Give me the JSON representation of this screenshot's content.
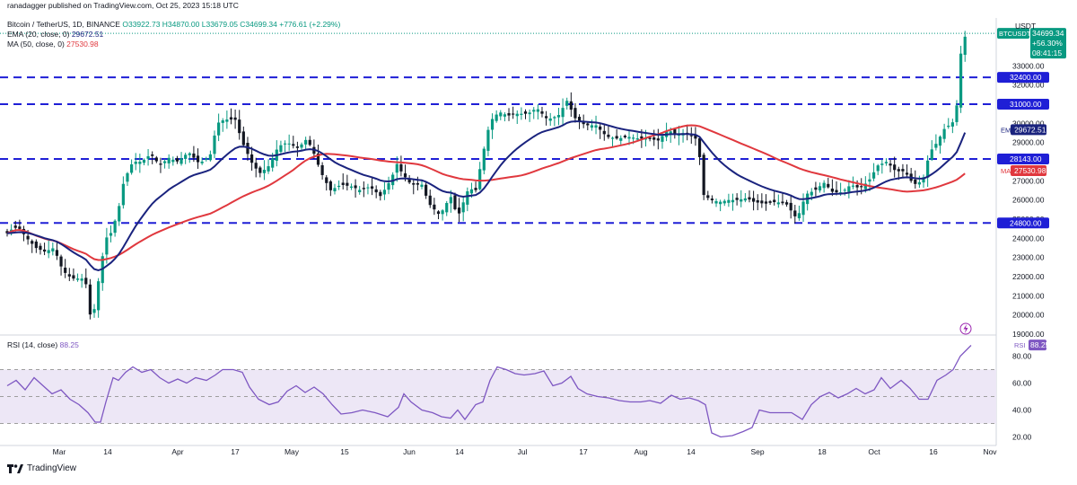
{
  "publisher": "ranadagger published on TradingView.com, Oct 25, 2023 15:18 UTC",
  "legend": {
    "symbol_line": "Bitcoin / TetherUS, 1D, BINANCE",
    "ohlc": "O33922.73 H34870.00 L33679.05 C34699.34 +776.61 (+2.29%)",
    "ema_label": "EMA (20, close, 0)",
    "ema_value": "29672.51",
    "ma_label": "MA (50, close, 0)",
    "ma_value": "27530.98"
  },
  "rsi_legend": {
    "label": "RSI (14, close)",
    "value": "88.25"
  },
  "logo_text": "TradingView",
  "price_axis_currency": "USDT",
  "price_tag": {
    "symbol": "BTCUSDT",
    "price": "34699.34",
    "change": "+56.30%",
    "countdown": "08:41:15"
  },
  "colors": {
    "up": "#089981",
    "down": "#131722",
    "ema": "#1a237e",
    "ma": "#e0383e",
    "rsi": "#7e57c2",
    "rsi_band": "#ede7f6",
    "level": "#1f1fd6",
    "text": "#131722"
  },
  "icons": {
    "alert": "lightning-icon",
    "logo": "tradingview-logo-icon"
  },
  "chart_data": [
    {
      "type": "candlestick",
      "title": "Bitcoin / TetherUS, 1D, BINANCE",
      "ylim": [
        19000,
        35500
      ],
      "y_ticks": [
        19000,
        20000,
        21000,
        22000,
        23000,
        24000,
        25000,
        26000,
        27000,
        28000,
        29000,
        30000,
        31000,
        32000,
        33000
      ],
      "x_ticks": [
        "Mar",
        "14",
        "Apr",
        "17",
        "May",
        "15",
        "Jun",
        "14",
        "Jul",
        "17",
        "Aug",
        "14",
        "Sep",
        "18",
        "Oct",
        "16",
        "Nov"
      ],
      "horizontal_levels": [
        {
          "value": 32400,
          "label": "32400.00"
        },
        {
          "value": 31000,
          "label": "31000.00"
        },
        {
          "value": 28143,
          "label": "28143.00"
        },
        {
          "value": 24800,
          "label": "24800.00"
        }
      ],
      "ema_tag": "29672.51",
      "ma_tag": "27530.98",
      "series": [
        {
          "name": "EMA",
          "legend": "EMA (20, close, 0)",
          "last": 29672.51
        },
        {
          "name": "MA",
          "legend": "MA (50, close, 0)",
          "last": 27530.98
        }
      ],
      "close_path": [
        [
          0,
          23700
        ],
        [
          10,
          24400
        ],
        [
          20,
          24600
        ],
        [
          30,
          24000
        ],
        [
          40,
          23500
        ],
        [
          50,
          23300
        ],
        [
          60,
          23500
        ],
        [
          70,
          22300
        ],
        [
          80,
          21900
        ],
        [
          95,
          21900
        ],
        [
          100,
          20000
        ],
        [
          105,
          20300
        ],
        [
          112,
          22500
        ],
        [
          118,
          24000
        ],
        [
          124,
          24300
        ],
        [
          132,
          25500
        ],
        [
          138,
          27000
        ],
        [
          148,
          28000
        ],
        [
          158,
          28000
        ],
        [
          168,
          28400
        ],
        [
          178,
          27800
        ],
        [
          188,
          28200
        ],
        [
          198,
          28000
        ],
        [
          210,
          28500
        ],
        [
          222,
          27900
        ],
        [
          234,
          28300
        ],
        [
          242,
          30000
        ],
        [
          250,
          30200
        ],
        [
          262,
          30200
        ],
        [
          270,
          29000
        ],
        [
          282,
          27800
        ],
        [
          290,
          27400
        ],
        [
          300,
          27800
        ],
        [
          310,
          28800
        ],
        [
          320,
          29000
        ],
        [
          332,
          28700
        ],
        [
          342,
          29200
        ],
        [
          350,
          28400
        ],
        [
          358,
          27400
        ],
        [
          368,
          26500
        ],
        [
          380,
          26800
        ],
        [
          392,
          26700
        ],
        [
          402,
          26500
        ],
        [
          412,
          26700
        ],
        [
          424,
          26200
        ],
        [
          436,
          27100
        ],
        [
          442,
          27900
        ],
        [
          448,
          27400
        ],
        [
          458,
          26800
        ],
        [
          470,
          26800
        ],
        [
          478,
          25800
        ],
        [
          490,
          25200
        ],
        [
          502,
          26200
        ],
        [
          510,
          25100
        ],
        [
          522,
          26600
        ],
        [
          530,
          26500
        ],
        [
          538,
          28400
        ],
        [
          546,
          30100
        ],
        [
          556,
          30600
        ],
        [
          566,
          30400
        ],
        [
          576,
          30500
        ],
        [
          588,
          30500
        ],
        [
          598,
          30800
        ],
        [
          610,
          30200
        ],
        [
          622,
          30400
        ],
        [
          632,
          31200
        ],
        [
          640,
          30300
        ],
        [
          652,
          29900
        ],
        [
          664,
          29900
        ],
        [
          676,
          29300
        ],
        [
          688,
          29200
        ],
        [
          700,
          29300
        ],
        [
          712,
          29200
        ],
        [
          722,
          29200
        ],
        [
          734,
          29100
        ],
        [
          744,
          29700
        ],
        [
          752,
          29400
        ],
        [
          762,
          29500
        ],
        [
          772,
          29300
        ],
        [
          778,
          29100
        ],
        [
          783,
          26300
        ],
        [
          792,
          26000
        ],
        [
          802,
          25900
        ],
        [
          812,
          26000
        ],
        [
          822,
          26000
        ],
        [
          832,
          26100
        ],
        [
          840,
          25900
        ],
        [
          852,
          25800
        ],
        [
          864,
          25900
        ],
        [
          876,
          25800
        ],
        [
          888,
          25000
        ],
        [
          898,
          26300
        ],
        [
          908,
          26500
        ],
        [
          918,
          26900
        ],
        [
          928,
          26400
        ],
        [
          938,
          26400
        ],
        [
          948,
          26800
        ],
        [
          958,
          26600
        ],
        [
          968,
          27000
        ],
        [
          978,
          27800
        ],
        [
          988,
          28000
        ],
        [
          998,
          27500
        ],
        [
          1008,
          27500
        ],
        [
          1018,
          26800
        ],
        [
          1028,
          27000
        ],
        [
          1036,
          28500
        ],
        [
          1044,
          29000
        ],
        [
          1052,
          29700
        ],
        [
          1060,
          30000
        ],
        [
          1065,
          30200
        ],
        [
          1069,
          33200
        ],
        [
          1073,
          34300
        ],
        [
          1077,
          34699
        ]
      ]
    },
    {
      "type": "line",
      "title": "RSI (14, close)",
      "ylim": [
        15,
        95
      ],
      "y_ticks": [
        20,
        40,
        60,
        80
      ],
      "bands": [
        30,
        50,
        70
      ],
      "last": 88.25,
      "values_path": [
        [
          0,
          58
        ],
        [
          10,
          62
        ],
        [
          20,
          55
        ],
        [
          30,
          64
        ],
        [
          40,
          58
        ],
        [
          50,
          52
        ],
        [
          60,
          55
        ],
        [
          70,
          48
        ],
        [
          80,
          44
        ],
        [
          90,
          38
        ],
        [
          98,
          31
        ],
        [
          104,
          31
        ],
        [
          110,
          46
        ],
        [
          118,
          64
        ],
        [
          124,
          62
        ],
        [
          132,
          68
        ],
        [
          140,
          72
        ],
        [
          150,
          68
        ],
        [
          160,
          70
        ],
        [
          170,
          64
        ],
        [
          180,
          60
        ],
        [
          190,
          63
        ],
        [
          200,
          60
        ],
        [
          210,
          64
        ],
        [
          222,
          62
        ],
        [
          232,
          66
        ],
        [
          240,
          70
        ],
        [
          252,
          70
        ],
        [
          262,
          68
        ],
        [
          270,
          57
        ],
        [
          280,
          48
        ],
        [
          292,
          44
        ],
        [
          302,
          46
        ],
        [
          312,
          54
        ],
        [
          322,
          58
        ],
        [
          332,
          53
        ],
        [
          342,
          57
        ],
        [
          352,
          52
        ],
        [
          362,
          44
        ],
        [
          372,
          37
        ],
        [
          384,
          38
        ],
        [
          396,
          40
        ],
        [
          410,
          38
        ],
        [
          424,
          35
        ],
        [
          436,
          42
        ],
        [
          442,
          52
        ],
        [
          450,
          46
        ],
        [
          462,
          40
        ],
        [
          474,
          38
        ],
        [
          484,
          35
        ],
        [
          494,
          34
        ],
        [
          502,
          40
        ],
        [
          510,
          33
        ],
        [
          522,
          44
        ],
        [
          530,
          46
        ],
        [
          538,
          62
        ],
        [
          546,
          72
        ],
        [
          556,
          70
        ],
        [
          566,
          67
        ],
        [
          576,
          66
        ],
        [
          588,
          67
        ],
        [
          598,
          69
        ],
        [
          608,
          58
        ],
        [
          618,
          60
        ],
        [
          628,
          65
        ],
        [
          636,
          56
        ],
        [
          646,
          52
        ],
        [
          658,
          50
        ],
        [
          670,
          49
        ],
        [
          682,
          47
        ],
        [
          694,
          46
        ],
        [
          706,
          46
        ],
        [
          716,
          47
        ],
        [
          728,
          45
        ],
        [
          740,
          51
        ],
        [
          750,
          48
        ],
        [
          760,
          49
        ],
        [
          770,
          47
        ],
        [
          778,
          44
        ],
        [
          785,
          23
        ],
        [
          795,
          20
        ],
        [
          808,
          21
        ],
        [
          820,
          24
        ],
        [
          830,
          27
        ],
        [
          838,
          40
        ],
        [
          850,
          38
        ],
        [
          862,
          38
        ],
        [
          874,
          38
        ],
        [
          886,
          33
        ],
        [
          896,
          44
        ],
        [
          906,
          50
        ],
        [
          916,
          53
        ],
        [
          926,
          49
        ],
        [
          936,
          52
        ],
        [
          946,
          56
        ],
        [
          956,
          52
        ],
        [
          966,
          55
        ],
        [
          974,
          64
        ],
        [
          984,
          56
        ],
        [
          996,
          62
        ],
        [
          1006,
          56
        ],
        [
          1016,
          48
        ],
        [
          1026,
          48
        ],
        [
          1036,
          62
        ],
        [
          1046,
          66
        ],
        [
          1054,
          70
        ],
        [
          1062,
          80
        ],
        [
          1068,
          84
        ],
        [
          1074,
          88
        ]
      ]
    }
  ]
}
